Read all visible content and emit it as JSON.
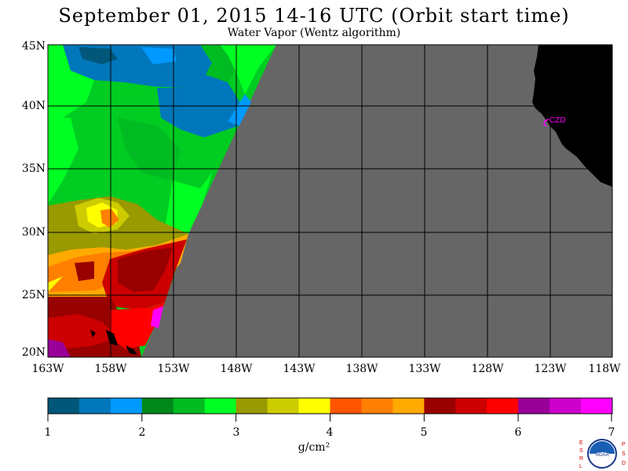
{
  "title": "September 01, 2015  14-16 UTC  (Orbit start time)",
  "subtitle": "Water Vapor (Wentz algorithm)",
  "map": {
    "lat_labels": [
      "45N",
      "40N",
      "35N",
      "30N",
      "25N",
      "20N"
    ],
    "lon_labels": [
      "163W",
      "158W",
      "153W",
      "148W",
      "143W",
      "138W",
      "133W",
      "128W",
      "123W",
      "118W"
    ],
    "station_label": "CZD",
    "colors": {
      "no_data": "#666666",
      "land": "#000000",
      "station": "#ff00ff",
      "grid": "#000000"
    }
  },
  "colorbar": {
    "unit": "g/cm²",
    "tick_labels": [
      "1",
      "2",
      "3",
      "4",
      "5",
      "6",
      "7"
    ],
    "colors": [
      "#00577a",
      "#0077bb",
      "#0099ff",
      "#00881a",
      "#00bb22",
      "#00ff22",
      "#999900",
      "#cccc00",
      "#ffff00",
      "#ff5500",
      "#ff7f00",
      "#ffaa00",
      "#990000",
      "#cc0000",
      "#ff0000",
      "#990099",
      "#cc00cc",
      "#ff00ff"
    ]
  },
  "logo": {
    "left_letters": "ESRL",
    "right_letters": "PSD",
    "center_text": "NOAA"
  }
}
